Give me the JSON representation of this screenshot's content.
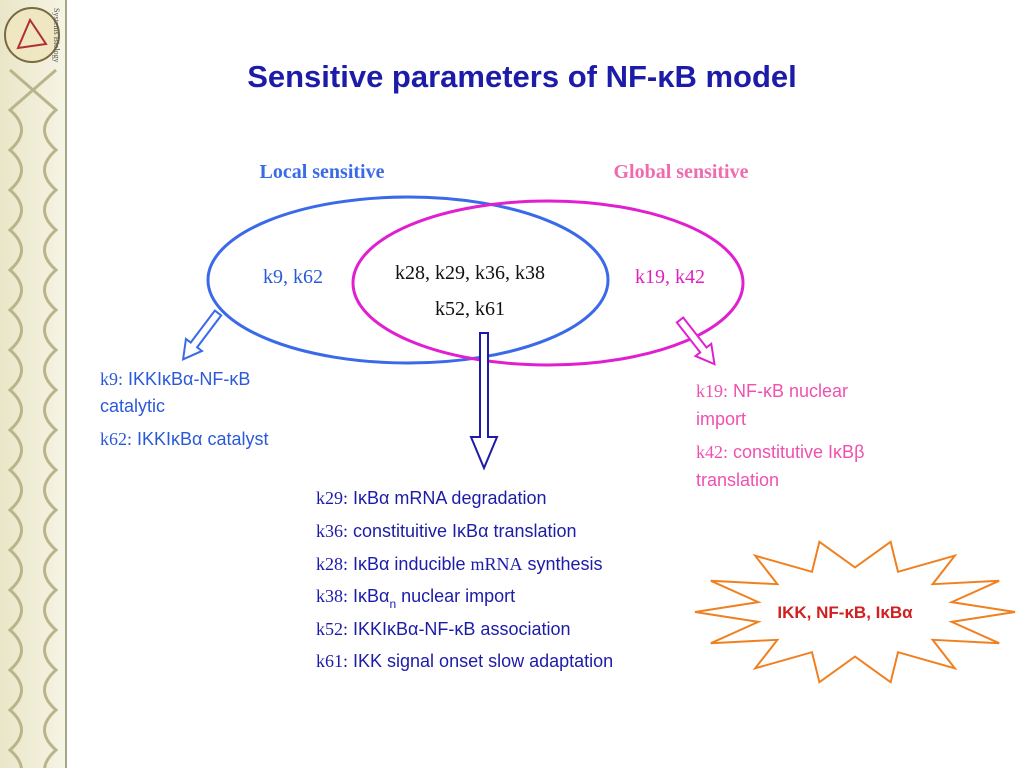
{
  "sidebar": {
    "label": "Systems Biology"
  },
  "title": "Sensitive parameters of NF-κB model",
  "venn": {
    "left_label": "Local sensitive",
    "right_label": "Global sensitive",
    "left_only": "k9, k62",
    "overlap": [
      "k28, k29, k36, k38",
      "k52, k61"
    ],
    "right_only": "k19, k42"
  },
  "local_notes": [
    {
      "key": "k9:",
      "lines": [
        "IKKIκBα-NF-κB",
        "catalytic"
      ]
    },
    {
      "key": "k62:",
      "lines": [
        "IKKIκBα catalyst"
      ]
    }
  ],
  "global_notes": [
    {
      "key": "k19:",
      "lines": [
        "NF-κB nuclear",
        "import"
      ]
    },
    {
      "key": "k42:",
      "lines": [
        "constitutive IκBβ",
        "translation"
      ]
    }
  ],
  "overlap_notes": [
    {
      "key": "k29:",
      "text": "IκBα mRNA degradation"
    },
    {
      "key": "k36:",
      "text": "constituitive IκBα translation"
    },
    {
      "key": "k28:",
      "parts": [
        "IκBα inducible",
        "mRNA",
        "synthesis"
      ]
    },
    {
      "key": "k38:",
      "parts": [
        "IκBα",
        "n",
        "nuclear import"
      ]
    },
    {
      "key": "k52:",
      "text": "IKKIκBα-NF-κB association"
    },
    {
      "key": "k61:",
      "text": "IKK signal onset slow adaptation"
    }
  ],
  "burst": "IKK, NF-κB, IκBα"
}
